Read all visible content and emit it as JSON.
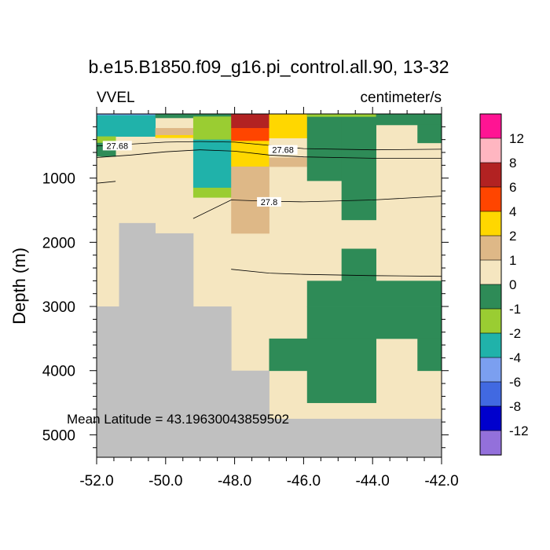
{
  "chart_data": {
    "type": "heatmap",
    "title": "b.e15.B1850.f09_g16.pi_control.all.90, 13-32",
    "left_label": "VVEL",
    "right_label": "centimeter/s",
    "ylabel": "Depth (m)",
    "xlabel": "",
    "xlim": [
      -52.0,
      -42.0
    ],
    "ylim": [
      5350,
      0
    ],
    "x_ticks": [
      -52.0,
      -50.0,
      -48.0,
      -46.0,
      -44.0,
      -42.0
    ],
    "x_tick_labels": [
      "-52.0",
      "-50.0",
      "-48.0",
      "-46.0",
      "-44.0",
      "-42.0"
    ],
    "y_ticks": [
      1000,
      2000,
      3000,
      4000,
      5000
    ],
    "y_tick_labels": [
      "1000",
      "2000",
      "3000",
      "4000",
      "5000"
    ],
    "annotation": "Mean Latitude = 43.19630043859502",
    "colorbar": {
      "colors": [
        "#ff1493",
        "#ffb6c1",
        "#b22222",
        "#ff4500",
        "#ffd700",
        "#deb887",
        "#f5e6c0",
        "#2e8b57",
        "#9acd32",
        "#20b2aa",
        "#7b9ff0",
        "#4169e1",
        "#0000cd",
        "#9370db"
      ],
      "boundary_labels": [
        "12",
        "8",
        "6",
        "4",
        "2",
        "1",
        "0",
        "-1",
        "-2",
        "-4",
        "-6",
        "-8",
        "-12"
      ]
    },
    "colors": {
      "background": "#f5e6c0",
      "land": "#c0c0c0"
    },
    "cells": [
      {
        "x0": -52.0,
        "x1": -51.35,
        "d0": 0,
        "d1": 3000,
        "color": "#f5e6c0"
      },
      {
        "x0": -51.35,
        "x1": -50.3,
        "d0": 0,
        "d1": 1700,
        "color": "#f5e6c0"
      },
      {
        "x0": -50.3,
        "x1": -49.2,
        "d0": 0,
        "d1": 1860,
        "color": "#f5e6c0"
      },
      {
        "x0": -49.2,
        "x1": -48.1,
        "d0": 0,
        "d1": 3000,
        "color": "#f5e6c0"
      },
      {
        "x0": -48.1,
        "x1": -42.0,
        "d0": 0,
        "d1": 4750,
        "color": "#f5e6c0"
      },
      {
        "x0": -52.0,
        "x1": -51.35,
        "d0": 3000,
        "d1": 5350,
        "color": "#c0c0c0"
      },
      {
        "x0": -51.35,
        "x1": -50.3,
        "d0": 1700,
        "d1": 5350,
        "color": "#c0c0c0"
      },
      {
        "x0": -50.3,
        "x1": -49.2,
        "d0": 1860,
        "d1": 5350,
        "color": "#c0c0c0"
      },
      {
        "x0": -49.2,
        "x1": -48.1,
        "d0": 3000,
        "d1": 5350,
        "color": "#c0c0c0"
      },
      {
        "x0": -48.1,
        "x1": -47.0,
        "d0": 4000,
        "d1": 5350,
        "color": "#c0c0c0"
      },
      {
        "x0": -47.0,
        "x1": -42.0,
        "d0": 4750,
        "d1": 5350,
        "color": "#c0c0c0"
      },
      {
        "x0": -52.0,
        "x1": -51.35,
        "d0": 0,
        "d1": 20,
        "color": "#7b9ff0"
      },
      {
        "x0": -51.35,
        "x1": -50.3,
        "d0": 0,
        "d1": 20,
        "color": "#7b9ff0"
      },
      {
        "x0": -52.0,
        "x1": -50.3,
        "d0": 20,
        "d1": 350,
        "color": "#20b2aa"
      },
      {
        "x0": -52.0,
        "x1": -51.45,
        "d0": 350,
        "d1": 450,
        "color": "#9acd32"
      },
      {
        "x0": -52.0,
        "x1": -51.45,
        "d0": 450,
        "d1": 660,
        "color": "#2e8b57"
      },
      {
        "x0": -50.3,
        "x1": -49.2,
        "d0": 0,
        "d1": 60,
        "color": "#2e8b57"
      },
      {
        "x0": -50.3,
        "x1": -49.2,
        "d0": 220,
        "d1": 330,
        "color": "#deb887"
      },
      {
        "x0": -50.3,
        "x1": -49.2,
        "d0": 330,
        "d1": 370,
        "color": "#ffd700"
      },
      {
        "x0": -49.2,
        "x1": -48.1,
        "d0": 0,
        "d1": 40,
        "color": "#2e8b57"
      },
      {
        "x0": -49.2,
        "x1": -48.1,
        "d0": 40,
        "d1": 400,
        "color": "#9acd32"
      },
      {
        "x0": -49.2,
        "x1": -48.1,
        "d0": 400,
        "d1": 1150,
        "color": "#20b2aa"
      },
      {
        "x0": -49.2,
        "x1": -48.1,
        "d0": 1150,
        "d1": 1300,
        "color": "#9acd32"
      },
      {
        "x0": -48.1,
        "x1": -47.0,
        "d0": 0,
        "d1": 220,
        "color": "#b22222"
      },
      {
        "x0": -48.1,
        "x1": -47.0,
        "d0": 220,
        "d1": 420,
        "color": "#ff4500"
      },
      {
        "x0": -48.1,
        "x1": -47.0,
        "d0": 420,
        "d1": 820,
        "color": "#ffd700"
      },
      {
        "x0": -48.1,
        "x1": -47.0,
        "d0": 820,
        "d1": 1860,
        "color": "#deb887"
      },
      {
        "x0": -47.0,
        "x1": -45.9,
        "d0": 0,
        "d1": 380,
        "color": "#ffd700"
      },
      {
        "x0": -47.0,
        "x1": -45.9,
        "d0": 380,
        "d1": 680,
        "color": "#f5e6c0"
      },
      {
        "x0": -47.0,
        "x1": -45.9,
        "d0": 680,
        "d1": 820,
        "color": "#deb887"
      },
      {
        "x0": -45.9,
        "x1": -44.9,
        "d0": 0,
        "d1": 1040,
        "color": "#2e8b57"
      },
      {
        "x0": -44.9,
        "x1": -43.9,
        "d0": 0,
        "d1": 1650,
        "color": "#2e8b57"
      },
      {
        "x0": -45.9,
        "x1": -43.9,
        "d0": 0,
        "d1": 40,
        "color": "#9acd32"
      },
      {
        "x0": -43.9,
        "x1": -42.0,
        "d0": 0,
        "d1": 170,
        "color": "#2e8b57"
      },
      {
        "x0": -42.7,
        "x1": -42.0,
        "d0": 170,
        "d1": 450,
        "color": "#2e8b57"
      },
      {
        "x0": -44.9,
        "x1": -43.9,
        "d0": 2100,
        "d1": 2600,
        "color": "#2e8b57"
      },
      {
        "x0": -45.9,
        "x1": -42.0,
        "d0": 2600,
        "d1": 3000,
        "color": "#2e8b57"
      },
      {
        "x0": -45.9,
        "x1": -42.0,
        "d0": 3000,
        "d1": 3500,
        "color": "#2e8b57"
      },
      {
        "x0": -47.0,
        "x1": -45.9,
        "d0": 3500,
        "d1": 4000,
        "color": "#2e8b57"
      },
      {
        "x0": -45.9,
        "x1": -43.9,
        "d0": 3500,
        "d1": 4500,
        "color": "#2e8b57"
      },
      {
        "x0": -42.7,
        "x1": -42.0,
        "d0": 3500,
        "d1": 4000,
        "color": "#2e8b57"
      }
    ],
    "contours": [
      {
        "points": [
          [
            -52.0,
            500
          ],
          [
            -51.0,
            470
          ],
          [
            -50.0,
            440
          ],
          [
            -49.0,
            430
          ],
          [
            -48.0,
            440
          ],
          [
            -47.0,
            490
          ],
          [
            -46.0,
            540
          ],
          [
            -44.0,
            560
          ],
          [
            -42.0,
            550
          ]
        ]
      },
      {
        "points": [
          [
            -52.0,
            680
          ],
          [
            -51.0,
            640
          ],
          [
            -50.0,
            590
          ],
          [
            -49.0,
            560
          ],
          [
            -48.0,
            580
          ],
          [
            -47.0,
            640
          ],
          [
            -46.0,
            670
          ],
          [
            -44.0,
            690
          ],
          [
            -42.0,
            690
          ]
        ]
      },
      {
        "points": [
          [
            -52.0,
            1080
          ],
          [
            -51.45,
            1050
          ]
        ]
      },
      {
        "points": [
          [
            -49.2,
            1630
          ],
          [
            -48.1,
            1340
          ],
          [
            -47.0,
            1360
          ],
          [
            -46.0,
            1370
          ],
          [
            -44.0,
            1340
          ],
          [
            -42.0,
            1280
          ]
        ]
      },
      {
        "points": [
          [
            -48.1,
            2420
          ],
          [
            -47.0,
            2480
          ],
          [
            -46.0,
            2500
          ],
          [
            -44.0,
            2520
          ],
          [
            -42.0,
            2530
          ]
        ]
      }
    ],
    "contour_labels": [
      {
        "text": "27.68",
        "x": -51.4,
        "d": 495
      },
      {
        "text": "27.68",
        "x": -46.6,
        "d": 560
      },
      {
        "text": "27.8",
        "x": -47.0,
        "d": 1370
      }
    ]
  }
}
